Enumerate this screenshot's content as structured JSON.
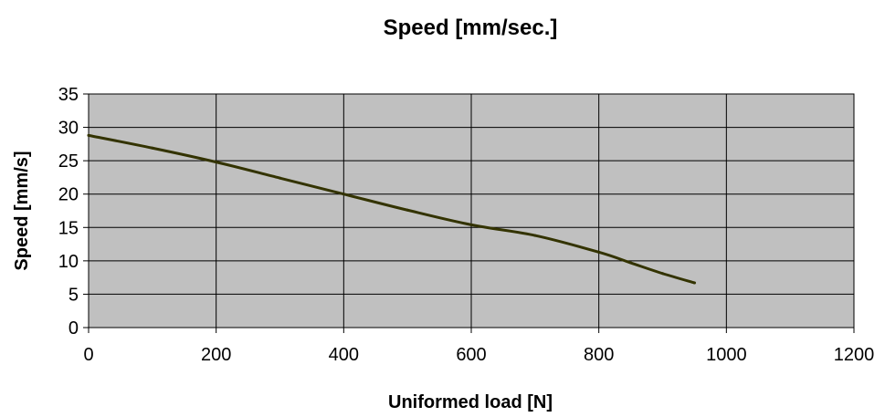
{
  "chart_data": {
    "type": "line",
    "title": "Speed [mm/sec.]",
    "xlabel": "Uniformed load [N]",
    "ylabel": "Speed [mm/s]",
    "xlim": [
      0,
      1200
    ],
    "ylim": [
      0,
      35
    ],
    "xticks": [
      0,
      200,
      400,
      600,
      800,
      1000,
      1200
    ],
    "yticks": [
      0,
      5,
      10,
      15,
      20,
      25,
      30,
      35
    ],
    "grid": true,
    "legend": "none",
    "plot_background": "#c0c0c0",
    "line_color": "#333300",
    "series": [
      {
        "x": [
          0,
          100,
          200,
          300,
          400,
          500,
          600,
          700,
          800,
          850,
          900,
          950
        ],
        "y": [
          28.8,
          26.9,
          24.8,
          22.4,
          20.0,
          17.6,
          15.4,
          13.8,
          11.3,
          9.7,
          8.1,
          6.7
        ]
      }
    ]
  }
}
